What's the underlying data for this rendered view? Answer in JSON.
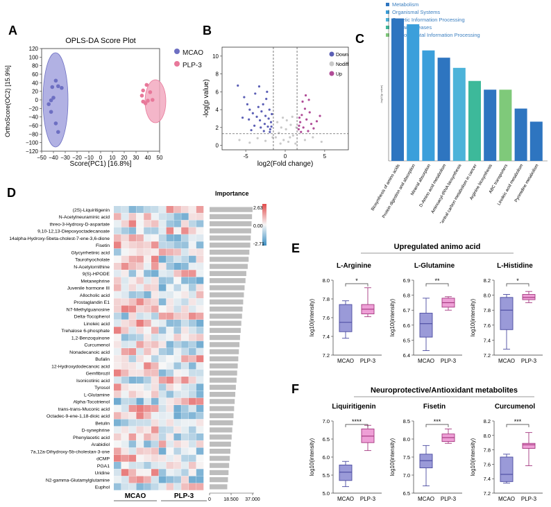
{
  "panels": {
    "A": {
      "letter": "A",
      "title": "OPLS-DA Score Plot",
      "xlabel": "Score(PC1) [16.8%]",
      "ylabel": "OrthoScore(OC2) [15.9%]",
      "xticks": [
        "−50",
        "−40",
        "−30",
        "−20",
        "−10",
        "0",
        "10",
        "20",
        "30",
        "40",
        "50"
      ],
      "yticks": [
        "120",
        "100",
        "80",
        "60",
        "40",
        "20",
        "0",
        "−20",
        "−40",
        "−60",
        "−80",
        "−100",
        "−120"
      ],
      "legend": [
        {
          "label": "MCAO",
          "color": "#6d6fc2"
        },
        {
          "label": "PLP-3",
          "color": "#e8789a"
        }
      ]
    },
    "B": {
      "letter": "B",
      "xlabel": "log2(Fold change)",
      "ylabel": "-log(p value)",
      "xticks": [
        "-5",
        "0",
        "5"
      ],
      "yticks": [
        "0",
        "2",
        "4",
        "6",
        "8",
        "10"
      ],
      "legend": [
        {
          "label": "Down",
          "color": "#5b5fb5"
        },
        {
          "label": "Nodiff",
          "color": "#c9c9c9"
        },
        {
          "label": "Up",
          "color": "#b04c97"
        }
      ]
    },
    "C": {
      "letter": "C",
      "ylabel": "-log10(p value)",
      "legend": [
        {
          "label": "Metabolism",
          "color": "#2e75c0"
        },
        {
          "label": "Organismal Systems",
          "color": "#3b9fdb"
        },
        {
          "label": "Genetic Information Processing",
          "color": "#4cb3d9"
        },
        {
          "label": "Human Diseases",
          "color": "#3db99a"
        },
        {
          "label": "Environmental Information Processing",
          "color": "#7fc97a"
        }
      ]
    },
    "D": {
      "letter": "D",
      "importance_title": "Importance",
      "scale_max": "2.63",
      "scale_mid": "0.00",
      "scale_min": "-2.71",
      "group1": "MCAO",
      "group2": "PLP-3",
      "imp_ticks": [
        "0",
        "18.500",
        "37.000"
      ]
    },
    "E": {
      "letter": "E",
      "title": "Upregulated animo acid",
      "ylabel": "log10(intensity)",
      "group_labels": [
        "MCAO",
        "PLP-3"
      ]
    },
    "F": {
      "letter": "F",
      "title": "Neuroprotective/Antioxidant metabolites",
      "ylabel": "log10(intensity)",
      "group_labels": [
        "MCAO",
        "PLP-3"
      ]
    }
  },
  "chart_data": [
    {
      "id": "A",
      "type": "scatter",
      "title": "OPLS-DA Score Plot",
      "xlabel": "Score(PC1) [16.8%]",
      "ylabel": "OrthoScore(OC2) [15.9%]",
      "xlim": [
        -50,
        50
      ],
      "ylim": [
        -120,
        120
      ],
      "series": [
        {
          "name": "MCAO",
          "points": [
            [
              -38,
              45
            ],
            [
              -36,
              32
            ],
            [
              -41,
              30
            ],
            [
              -33,
              28
            ],
            [
              -40,
              5
            ],
            [
              -44,
              -10
            ],
            [
              -42,
              -28
            ],
            [
              -38,
              -55
            ],
            [
              -36,
              -75
            ],
            [
              -42,
              -1
            ]
          ]
        },
        {
          "name": "PLP-3",
          "points": [
            [
              39,
              35
            ],
            [
              36,
              22
            ],
            [
              42,
              18
            ],
            [
              35,
              10
            ],
            [
              40,
              -2
            ],
            [
              44,
              0
            ],
            [
              38,
              -8
            ],
            [
              36,
              -4
            ]
          ]
        }
      ]
    },
    {
      "id": "B",
      "type": "scatter",
      "xlabel": "log2(Fold change)",
      "ylabel": "-log(p value)",
      "xlim": [
        -8,
        8
      ],
      "ylim": [
        -0.5,
        11
      ],
      "thresholds": {
        "x": [
          -1.5,
          1.5
        ],
        "y": 1.3
      },
      "series": [
        {
          "name": "Down",
          "points": [
            [
              -6,
              6.7
            ],
            [
              -5.2,
              5.4
            ],
            [
              -4.8,
              4.6
            ],
            [
              -4.5,
              4.0
            ],
            [
              -4.1,
              3.6
            ],
            [
              -3.8,
              5.8
            ],
            [
              -3.6,
              3.2
            ],
            [
              -3.4,
              4.3
            ],
            [
              -3.2,
              2.8
            ],
            [
              -3.0,
              3.8
            ],
            [
              -2.8,
              4.6
            ],
            [
              -2.6,
              2.4
            ],
            [
              -2.5,
              3.3
            ],
            [
              -2.4,
              5.2
            ],
            [
              -2.2,
              2.1
            ],
            [
              -2.1,
              3.0
            ],
            [
              -2.0,
              4.0
            ],
            [
              -1.9,
              1.8
            ],
            [
              -1.8,
              2.6
            ],
            [
              -1.7,
              3.5
            ],
            [
              -3.9,
              2.2
            ],
            [
              -4.6,
              2.9
            ],
            [
              -5.4,
              3.1
            ],
            [
              -3.3,
              6.6
            ],
            [
              -2.7,
              1.6
            ],
            [
              -1.95,
              1.5
            ],
            [
              -4.3,
              1.7
            ],
            [
              -3.1,
              2.0
            ],
            [
              -2.3,
              6.0
            ],
            [
              -1.75,
              2.1
            ]
          ]
        },
        {
          "name": "Nodiff",
          "points": [
            [
              -1.2,
              0.9
            ],
            [
              -0.8,
              1.4
            ],
            [
              -0.5,
              2.0
            ],
            [
              -0.2,
              0.6
            ],
            [
              0.1,
              1.8
            ],
            [
              0.4,
              0.4
            ],
            [
              0.7,
              2.3
            ],
            [
              1.0,
              1.1
            ],
            [
              1.3,
              0.2
            ],
            [
              -1.0,
              2.6
            ],
            [
              0.2,
              2.8
            ],
            [
              -0.3,
              3.1
            ],
            [
              0.6,
              0.9
            ],
            [
              -2.5,
              0.5
            ],
            [
              -3.5,
              0.8
            ],
            [
              -4.5,
              0.3
            ],
            [
              2.5,
              0.6
            ],
            [
              3.5,
              0.9
            ],
            [
              -5.8,
              0.6
            ],
            [
              4.6,
              0.4
            ],
            [
              -1.6,
              0.9
            ],
            [
              0.9,
              3.2
            ],
            [
              -0.6,
              0.2
            ],
            [
              1.4,
              2.0
            ]
          ]
        },
        {
          "name": "Up",
          "points": [
            [
              1.7,
              1.8
            ],
            [
              1.9,
              2.6
            ],
            [
              2.1,
              3.4
            ],
            [
              2.3,
              2.0
            ],
            [
              2.5,
              4.1
            ],
            [
              2.7,
              2.9
            ],
            [
              2.9,
              1.6
            ],
            [
              3.1,
              3.7
            ],
            [
              3.3,
              2.4
            ],
            [
              3.6,
              1.9
            ],
            [
              4.0,
              2.7
            ],
            [
              2.2,
              4.9
            ],
            [
              2.0,
              1.5
            ],
            [
              1.8,
              3.1
            ],
            [
              2.6,
              5.6
            ],
            [
              4.4,
              3.3
            ],
            [
              3.0,
              5.1
            ],
            [
              1.75,
              2.2
            ]
          ]
        }
      ]
    },
    {
      "id": "C",
      "type": "bar",
      "ylabel": "-log10(p value)",
      "categories": [
        "Biosynthesis of amino acids",
        "Protein digestion and absorption",
        "Mineral absorption",
        "D-Amino acid metabolism",
        "Aminoacyl-tRNA biosynthesis",
        "Central carbon metabolism in cancer",
        "Arginine biosynthesis",
        "ABC transporters",
        "Linoleic acid metabolism",
        "Pyrimidine metabolism"
      ],
      "values": [
        4.9,
        4.7,
        3.8,
        3.55,
        3.2,
        2.75,
        2.45,
        2.45,
        1.8,
        1.35
      ],
      "groups": [
        "Metabolism",
        "Organismal Systems",
        "Organismal Systems",
        "Metabolism",
        "Genetic Information Processing",
        "Human Diseases",
        "Metabolism",
        "Environmental Information Processing",
        "Metabolism",
        "Metabolism"
      ],
      "ylim": [
        0,
        5.2
      ]
    },
    {
      "id": "D",
      "type": "heatmap",
      "rows": [
        "(2S)-Liquiritigenin",
        "N-Acetylneuraminic acid",
        "threo-3-Hydroxy-D-aspartate",
        "9,10-12,13-Diepoxyoctadecanoate",
        "14alpha-Hydroxy-5beta-cholest-7-ene-3,6-dione",
        "Fisetin",
        "Glycyrrhetinic acid",
        "Taurohyocholate",
        "N-Acetylornithine",
        "9(S)-HPODE",
        "Metanephrine",
        "Juvenile hormone III",
        "Allocholic acid",
        "Prostaglandin E1",
        "N7-Methylguanosine",
        "Delta-Tocopherol",
        "Linoleic acid",
        "Trehalose 6-phosphate",
        "1,2-Benzoquinone",
        "Curcumenol",
        "Nonadecanoic acid",
        "Bufalin",
        "12-Hydroxydodecanoic acid",
        "Gemfibrozil",
        "Isonicotinic acid",
        "Tyrosol",
        "L-Glutamine",
        "Alpha-Tocotrienol",
        "trans-trans-Muconic acid",
        "Octadec-9-ene-1,18-dioic acid",
        "Betulin",
        "D-synephrine",
        "Phenylacetic acid",
        "Arabidiol",
        "7a,12a-Dihydroxy-5b-cholestan-3-one",
        "dCMP",
        "PGA1",
        "Uridine",
        "N2-gamma-Glutamylglutamine",
        "Euphol"
      ],
      "importance": [
        37.0,
        36.5,
        36.1,
        35.8,
        35.4,
        35.0,
        34.2,
        33.6,
        32.8,
        31.6,
        30.9,
        30.1,
        29.5,
        28.9,
        28.4,
        27.9,
        27.3,
        26.8,
        26.2,
        25.7,
        25.2,
        24.7,
        24.2,
        23.7,
        23.2,
        22.6,
        22.1,
        21.6,
        21.1,
        20.6,
        20.1,
        19.5,
        19.0,
        18.4,
        17.9,
        17.4,
        16.8,
        16.3,
        15.8,
        15.2
      ],
      "imp_range": [
        0,
        37
      ],
      "color_range": [
        -2.71,
        2.63
      ]
    },
    {
      "id": "E",
      "type": "box",
      "title": "Upregulated animo acid",
      "ylabel": "log10(intensity)",
      "plots": [
        {
          "name": "L-Arginine",
          "ylim": [
            7.2,
            8.0
          ],
          "yticks": [
            "7.2",
            "7.4",
            "7.6",
            "7.8",
            "8.0"
          ],
          "sig": "*",
          "groups": [
            {
              "name": "MCAO",
              "min": 7.38,
              "q1": 7.45,
              "median": 7.55,
              "q3": 7.74,
              "max": 7.78
            },
            {
              "name": "PLP-3",
              "min": 7.61,
              "q1": 7.64,
              "median": 7.69,
              "q3": 7.74,
              "max": 7.92
            }
          ]
        },
        {
          "name": "L-Glutamine",
          "ylim": [
            6.4,
            6.9
          ],
          "yticks": [
            "6.4",
            "6.5",
            "6.6",
            "6.7",
            "6.8",
            "6.9"
          ],
          "sig": "**",
          "groups": [
            {
              "name": "MCAO",
              "min": 6.43,
              "q1": 6.52,
              "median": 6.61,
              "q3": 6.68,
              "max": 6.78
            },
            {
              "name": "PLP-3",
              "min": 6.7,
              "q1": 6.72,
              "median": 6.75,
              "q3": 6.78,
              "max": 6.79
            }
          ]
        },
        {
          "name": "L-Histidine",
          "ylim": [
            7.2,
            8.2
          ],
          "yticks": [
            "7.2",
            "7.4",
            "7.6",
            "7.8",
            "8.0",
            "8.2"
          ],
          "sig": "*",
          "groups": [
            {
              "name": "MCAO",
              "min": 7.28,
              "q1": 7.54,
              "median": 7.8,
              "q3": 7.97,
              "max": 8.01
            },
            {
              "name": "PLP-3",
              "min": 7.9,
              "q1": 7.94,
              "median": 7.97,
              "q3": 8.01,
              "max": 8.05
            }
          ]
        }
      ]
    },
    {
      "id": "F",
      "type": "box",
      "title": "Neuroprotective/Antioxidant metabolites",
      "ylabel": "log10(intensity)",
      "plots": [
        {
          "name": "Liquiritigenin",
          "ylim": [
            5.0,
            7.0
          ],
          "yticks": [
            "5.0",
            "5.5",
            "6.0",
            "6.5",
            "7.0"
          ],
          "sig": "****",
          "groups": [
            {
              "name": "MCAO",
              "min": 5.18,
              "q1": 5.35,
              "median": 5.58,
              "q3": 5.78,
              "max": 5.88
            },
            {
              "name": "PLP-3",
              "min": 6.18,
              "q1": 6.4,
              "median": 6.58,
              "q3": 6.78,
              "max": 6.88
            }
          ]
        },
        {
          "name": "Fisetin",
          "ylim": [
            6.5,
            8.5
          ],
          "yticks": [
            "6.5",
            "7.0",
            "7.5",
            "8.0",
            "8.5"
          ],
          "sig": "***",
          "groups": [
            {
              "name": "MCAO",
              "min": 6.7,
              "q1": 7.2,
              "median": 7.4,
              "q3": 7.58,
              "max": 7.82
            },
            {
              "name": "PLP-3",
              "min": 7.88,
              "q1": 7.93,
              "median": 8.04,
              "q3": 8.14,
              "max": 8.28
            }
          ]
        },
        {
          "name": "Curcumenol",
          "ylim": [
            7.2,
            8.2
          ],
          "yticks": [
            "7.2",
            "7.4",
            "7.6",
            "7.8",
            "8.0",
            "8.2"
          ],
          "sig": "***",
          "groups": [
            {
              "name": "MCAO",
              "min": 7.34,
              "q1": 7.36,
              "median": 7.46,
              "q3": 7.7,
              "max": 7.74
            },
            {
              "name": "PLP-3",
              "min": 7.58,
              "q1": 7.82,
              "median": 7.87,
              "q3": 7.89,
              "max": 8.04
            }
          ]
        }
      ]
    }
  ]
}
